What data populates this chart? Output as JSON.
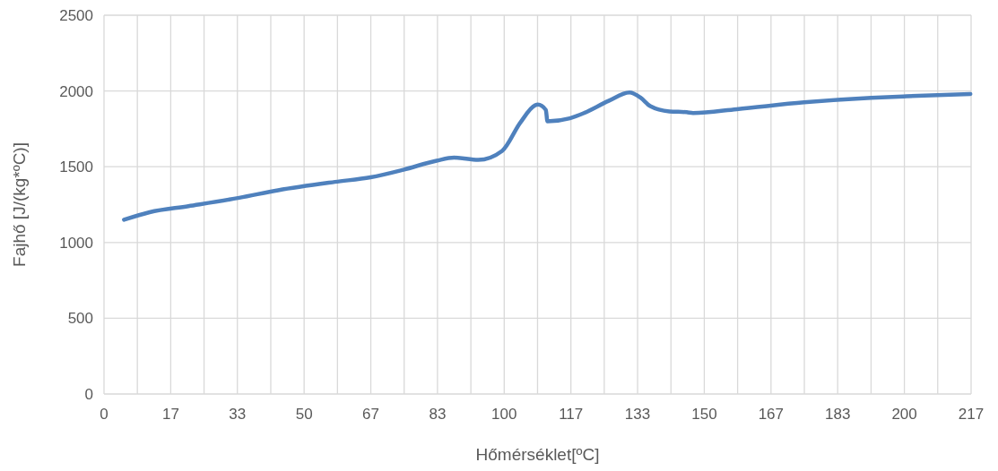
{
  "chart_data": {
    "type": "line",
    "xlabel": "Hőmérséklet[ºC]",
    "ylabel": "Fajhő [J/(kg*ºC)]",
    "x": [
      5.0,
      11.4,
      21.1,
      33.8,
      43.5,
      57.7,
      66.6,
      74.8,
      83.1,
      87.5,
      93.5,
      99.5,
      104.0,
      107.7,
      108.4,
      110.4,
      110.8,
      116.4,
      120.0,
      126.1,
      131.3,
      134.1,
      136.5,
      141.3,
      145.6,
      147.2,
      158.1,
      174.9,
      191.7,
      200.5,
      216.5
    ],
    "series": [
      {
        "color": "#4f81bd",
        "values": [
          1150,
          1200,
          1240,
          1295,
          1345,
          1400,
          1430,
          1480,
          1540,
          1560,
          1545,
          1605,
          1790,
          1905,
          1910,
          1875,
          1800,
          1820,
          1855,
          1935,
          1990,
          1955,
          1900,
          1865,
          1860,
          1855,
          1880,
          1925,
          1955,
          1965,
          1980
        ]
      }
    ],
    "xlim": [
      0,
      216.67
    ],
    "xticks": [
      0,
      {
        "value": 8.33,
        "label": null
      },
      {
        "value": 16.67,
        "label": "17"
      },
      {
        "value": 25,
        "label": null
      },
      {
        "value": 33.33,
        "label": "33"
      },
      {
        "value": 41.67,
        "label": null
      },
      50,
      {
        "value": 58.33,
        "label": null
      },
      {
        "value": 66.67,
        "label": "67"
      },
      {
        "value": 75,
        "label": null
      },
      {
        "value": 83.33,
        "label": "83"
      },
      {
        "value": 91.67,
        "label": null
      },
      100,
      {
        "value": 108.33,
        "label": null
      },
      {
        "value": 116.67,
        "label": "117"
      },
      {
        "value": 125,
        "label": null
      },
      {
        "value": 133.33,
        "label": "133"
      },
      {
        "value": 141.67,
        "label": null
      },
      150,
      {
        "value": 158.33,
        "label": null
      },
      {
        "value": 166.67,
        "label": "167"
      },
      {
        "value": 175,
        "label": null
      },
      {
        "value": 183.33,
        "label": "183"
      },
      {
        "value": 191.67,
        "label": null
      },
      200,
      {
        "value": 208.33,
        "label": null
      },
      {
        "value": 216.67,
        "label": "217"
      }
    ],
    "ylim": [
      0,
      2500
    ],
    "yticks": [
      0,
      500,
      1000,
      1500,
      2000,
      2500
    ],
    "grid": true,
    "marker": "none",
    "line_style": "solid"
  }
}
